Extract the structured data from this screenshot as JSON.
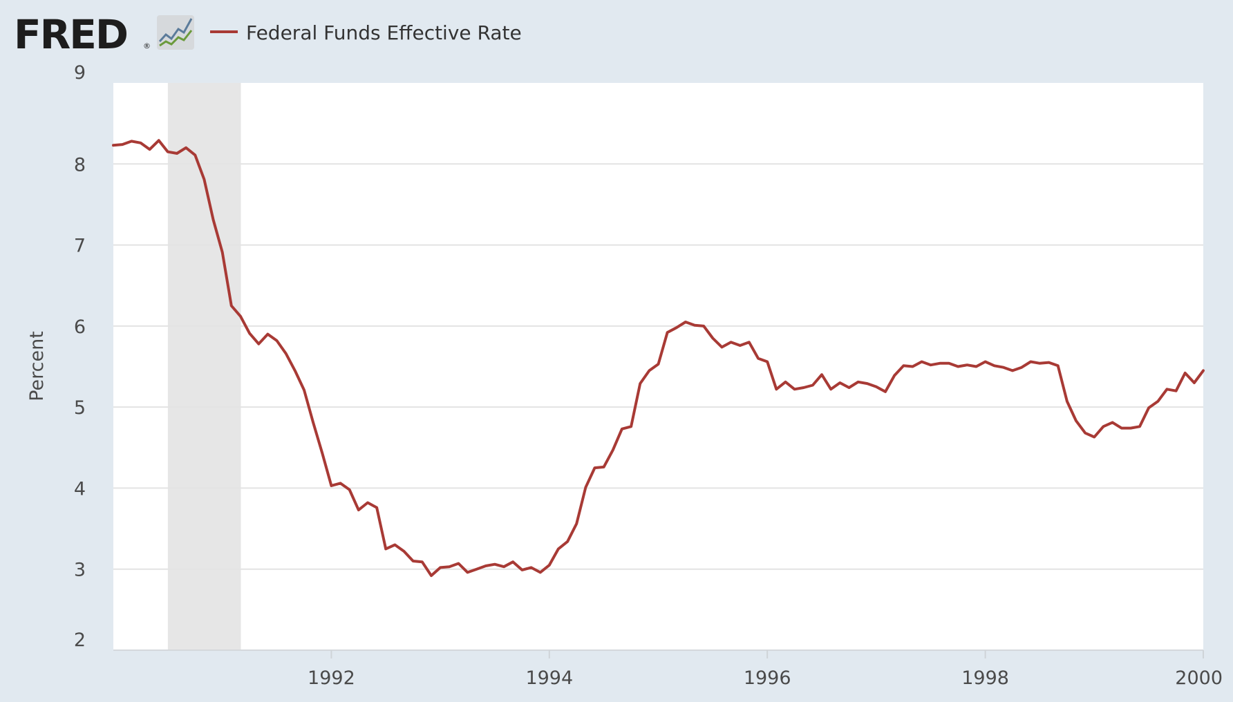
{
  "header": {
    "logo_text": "FRED",
    "registered_mark": "®",
    "logo_icon": "line-chart-icon"
  },
  "colors": {
    "background": "#e1e9f0",
    "plot_background": "#ffffff",
    "series_line": "#a83a35",
    "recession_band": "#e6e6e6",
    "gridline": "#e6e6e6",
    "tick_text": "#4a4a4a"
  },
  "chart_data": {
    "type": "line",
    "title": "",
    "xlabel": "",
    "ylabel": "Percent",
    "ylim": [
      2,
      9
    ],
    "yticks": [
      2,
      3,
      4,
      5,
      6,
      7,
      8,
      9
    ],
    "xlim": [
      1990.0,
      2000.0
    ],
    "xticks": [
      {
        "value": 1992,
        "label": "1992"
      },
      {
        "value": 1994,
        "label": "1994"
      },
      {
        "value": 1996,
        "label": "1996"
      },
      {
        "value": 1998,
        "label": "1998"
      },
      {
        "value": 2000,
        "label": "2000"
      }
    ],
    "legend": "top-left",
    "grid": true,
    "recessions": [
      {
        "start": 1990.5,
        "end": 1991.17
      }
    ],
    "series": [
      {
        "name": "Federal Funds Effective Rate",
        "frequency": "monthly",
        "x_start": 1990.0,
        "x_step": 0.0833333,
        "values": [
          8.23,
          8.24,
          8.28,
          8.26,
          8.18,
          8.29,
          8.15,
          8.13,
          8.2,
          8.11,
          7.81,
          7.31,
          6.91,
          6.25,
          6.12,
          5.91,
          5.78,
          5.9,
          5.82,
          5.66,
          5.45,
          5.21,
          4.81,
          4.43,
          4.03,
          4.06,
          3.98,
          3.73,
          3.82,
          3.76,
          3.25,
          3.3,
          3.22,
          3.1,
          3.09,
          2.92,
          3.02,
          3.03,
          3.07,
          2.96,
          3.0,
          3.04,
          3.06,
          3.03,
          3.09,
          2.99,
          3.02,
          2.96,
          3.05,
          3.25,
          3.34,
          3.56,
          4.01,
          4.25,
          4.26,
          4.47,
          4.73,
          4.76,
          5.29,
          5.45,
          5.53,
          5.92,
          5.98,
          6.05,
          6.01,
          6.0,
          5.85,
          5.74,
          5.8,
          5.76,
          5.8,
          5.6,
          5.56,
          5.22,
          5.31,
          5.22,
          5.24,
          5.27,
          5.4,
          5.22,
          5.3,
          5.24,
          5.31,
          5.29,
          5.25,
          5.19,
          5.39,
          5.51,
          5.5,
          5.56,
          5.52,
          5.54,
          5.54,
          5.5,
          5.52,
          5.5,
          5.56,
          5.51,
          5.49,
          5.45,
          5.49,
          5.56,
          5.54,
          5.55,
          5.51,
          5.07,
          4.83,
          4.68,
          4.63,
          4.76,
          4.81,
          4.74,
          4.74,
          4.76,
          4.99,
          5.07,
          5.22,
          5.2,
          5.42,
          5.3,
          5.45
        ]
      }
    ]
  }
}
